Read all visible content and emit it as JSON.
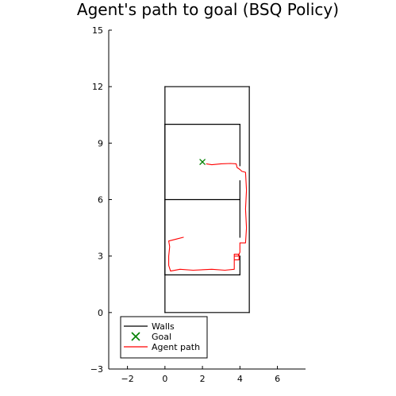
{
  "chart_data": {
    "type": "line",
    "title": "Agent's path to goal (BSQ Policy)",
    "xlabel": "",
    "ylabel": "",
    "xlim": [
      -3,
      7.5
    ],
    "ylim": [
      -3,
      15
    ],
    "x_ticks": [
      -2,
      0,
      2,
      4,
      6
    ],
    "x_tick_labels": [
      "−2",
      "0",
      "2",
      "4",
      "6"
    ],
    "y_ticks": [
      -3,
      0,
      3,
      6,
      9,
      12,
      15
    ],
    "y_tick_labels": [
      "−3",
      "0",
      "3",
      "6",
      "9",
      "12",
      "15"
    ],
    "grid": false,
    "legend_position": "bottom-left",
    "colors": {
      "walls": "#000000",
      "goal": "#008000",
      "agent_path": "#ff0000"
    },
    "series": [
      {
        "name": "Walls",
        "kind": "segments",
        "color": "#000000",
        "segments": [
          [
            [
              0,
              0
            ],
            [
              4.5,
              0
            ]
          ],
          [
            [
              4.5,
              0
            ],
            [
              4.5,
              12
            ]
          ],
          [
            [
              4.5,
              12
            ],
            [
              0,
              12
            ]
          ],
          [
            [
              0,
              12
            ],
            [
              0,
              0
            ]
          ],
          [
            [
              0,
              10
            ],
            [
              4,
              10
            ]
          ],
          [
            [
              0,
              10
            ],
            [
              0,
              2
            ]
          ],
          [
            [
              0,
              2
            ],
            [
              4,
              2
            ]
          ],
          [
            [
              4,
              2
            ],
            [
              4,
              3
            ]
          ],
          [
            [
              0,
              6
            ],
            [
              4,
              6
            ]
          ],
          [
            [
              4,
              4
            ],
            [
              4,
              7
            ]
          ],
          [
            [
              4,
              7.8
            ],
            [
              4,
              10
            ]
          ]
        ]
      },
      {
        "name": "Goal",
        "kind": "marker",
        "color": "#008000",
        "points": [
          [
            2,
            8
          ]
        ]
      },
      {
        "name": "Agent path",
        "kind": "line",
        "color": "#ff0000",
        "points": [
          [
            2.2,
            7.9
          ],
          [
            2.5,
            7.85
          ],
          [
            3.0,
            7.9
          ],
          [
            3.5,
            7.92
          ],
          [
            3.8,
            7.9
          ],
          [
            3.85,
            7.7
          ],
          [
            4.0,
            7.6
          ],
          [
            4.1,
            7.5
          ],
          [
            4.3,
            7.45
          ],
          [
            4.35,
            6.5
          ],
          [
            4.3,
            5.5
          ],
          [
            4.35,
            4.5
          ],
          [
            4.3,
            3.7
          ],
          [
            4.0,
            3.7
          ],
          [
            4.0,
            3.2
          ],
          [
            3.9,
            3.0
          ],
          [
            3.7,
            3.0
          ],
          [
            3.7,
            2.8
          ],
          [
            3.95,
            2.8
          ],
          [
            3.95,
            3.1
          ],
          [
            3.7,
            3.1
          ],
          [
            3.7,
            2.3
          ],
          [
            3.2,
            2.25
          ],
          [
            2.5,
            2.3
          ],
          [
            1.5,
            2.25
          ],
          [
            0.8,
            2.3
          ],
          [
            0.3,
            2.2
          ],
          [
            0.2,
            2.5
          ],
          [
            0.2,
            3.0
          ],
          [
            0.25,
            3.5
          ],
          [
            0.2,
            3.8
          ],
          [
            0.6,
            3.9
          ],
          [
            1.0,
            4.0
          ]
        ]
      }
    ]
  }
}
